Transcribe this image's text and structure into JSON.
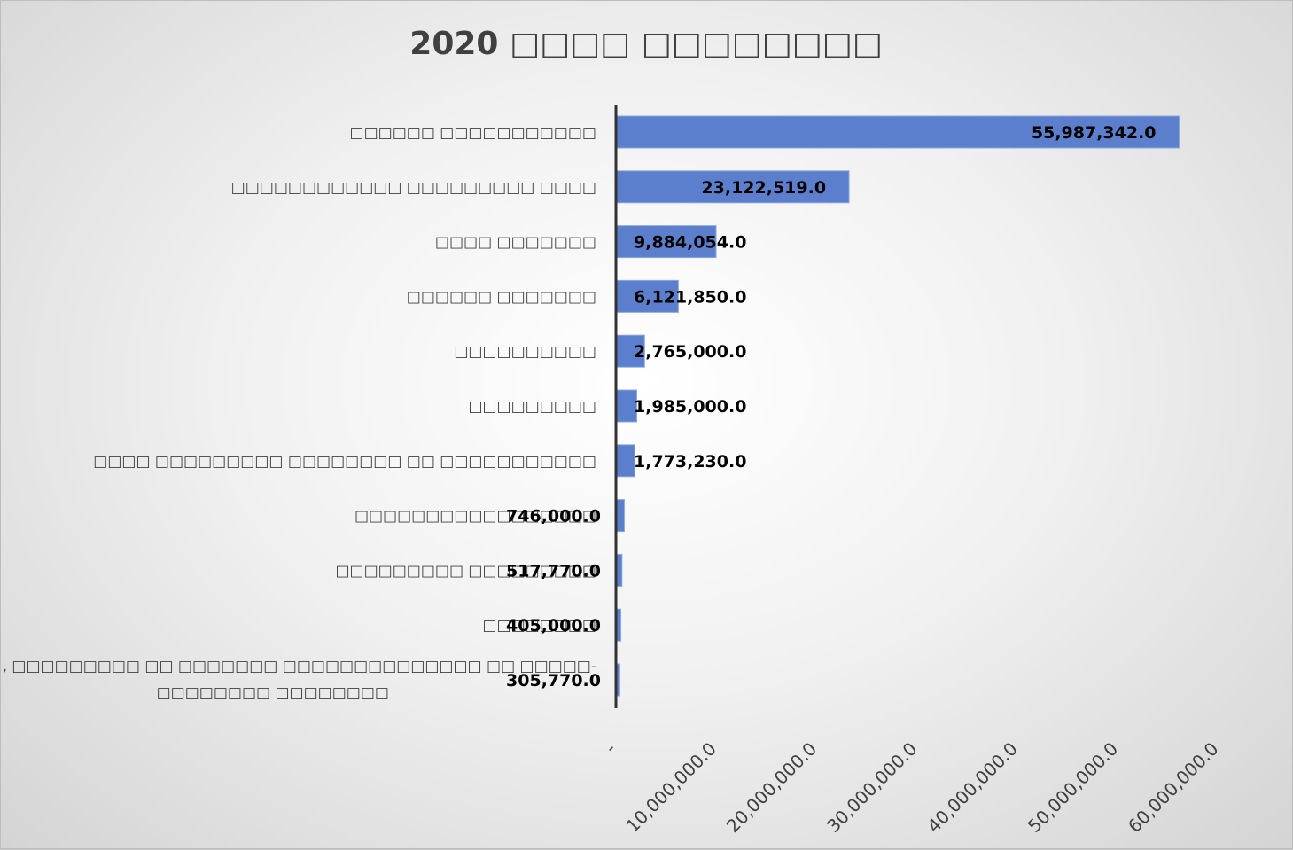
{
  "chart_data": {
    "type": "bar",
    "orientation": "horizontal",
    "title": "2020 □□□□ □□□□□□□□",
    "categories": [
      "□□□□□□ □□□□□□□□□□□",
      "□□□□□□□□□□□□ □□□□□□□□□ □□□□",
      "□□□□ □□□□□□□",
      "□□□□□□ □□□□□□□",
      "□□□□□□□□□□",
      "□□□□□□□□□",
      "□□□□ □□□□□□□□□ □□□□□□□□ □□ □□□□□□□□□□□",
      "□□□□□□□□□□□□□□□□□",
      "□□□□□□□□□ □□□□□□□□□",
      "□□□□□□□□",
      "□□□□□□□□□□□, □□□□□□□□□ □□ □□□□□□□ □□□□□□□□□□□□□□ □□ □□□□□-□□□□□□□□ □□□□□□□□"
    ],
    "values": [
      55987342,
      23122519,
      9884054,
      6121850,
      2765000,
      1985000,
      1773230,
      746000,
      517770,
      405000,
      305770
    ],
    "value_labels": [
      "55,987,342.0",
      "23,122,519.0",
      "9,884,054.0",
      "6,121,850.0",
      "2,765,000.0",
      "1,985,000.0",
      "1,773,230.0",
      "746,000.0",
      "517,770.0",
      "405,000.0",
      "305,770.0"
    ],
    "xlim": [
      0,
      60000000
    ],
    "x_ticks": [
      "-",
      "10,000,000.0",
      "20,000,000.0",
      "30,000,000.0",
      "40,000,000.0",
      "50,000,000.0",
      "60,000,000.0"
    ],
    "grid": false,
    "legend": "none",
    "bar_color": "#5b7fcc",
    "axis_color": "#333333"
  }
}
